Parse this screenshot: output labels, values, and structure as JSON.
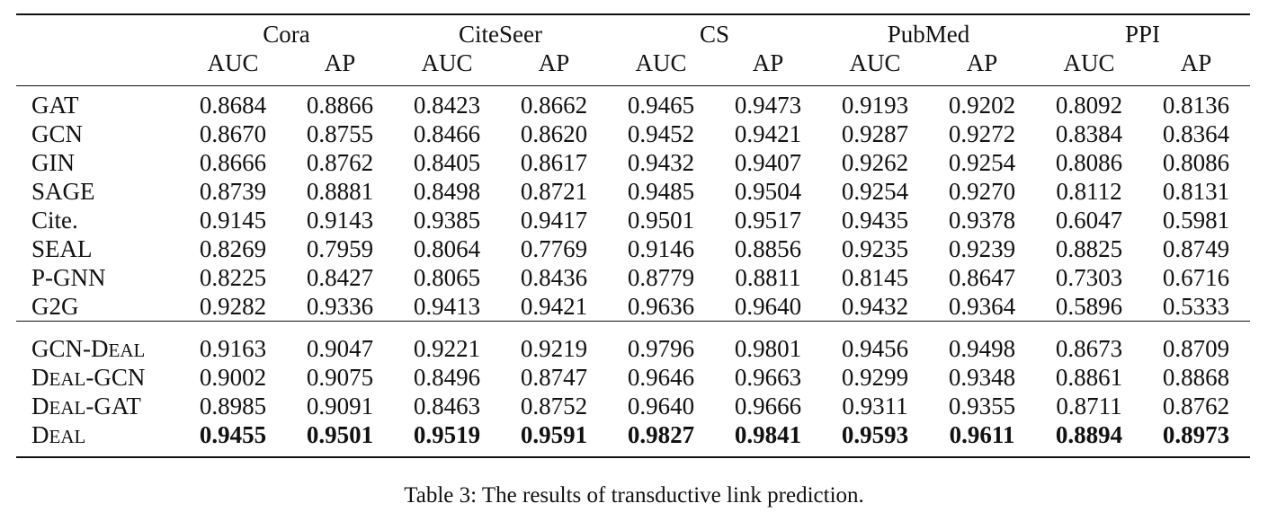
{
  "table": {
    "datasets": [
      "Cora",
      "CiteSeer",
      "CS",
      "PubMed",
      "PPI"
    ],
    "metrics": [
      "AUC",
      "AP"
    ],
    "group1": [
      {
        "method": "GAT",
        "values": [
          "0.8684",
          "0.8866",
          "0.8423",
          "0.8662",
          "0.9465",
          "0.9473",
          "0.9193",
          "0.9202",
          "0.8092",
          "0.8136"
        ]
      },
      {
        "method": "GCN",
        "values": [
          "0.8670",
          "0.8755",
          "0.8466",
          "0.8620",
          "0.9452",
          "0.9421",
          "0.9287",
          "0.9272",
          "0.8384",
          "0.8364"
        ]
      },
      {
        "method": "GIN",
        "values": [
          "0.8666",
          "0.8762",
          "0.8405",
          "0.8617",
          "0.9432",
          "0.9407",
          "0.9262",
          "0.9254",
          "0.8086",
          "0.8086"
        ]
      },
      {
        "method": "SAGE",
        "values": [
          "0.8739",
          "0.8881",
          "0.8498",
          "0.8721",
          "0.9485",
          "0.9504",
          "0.9254",
          "0.9270",
          "0.8112",
          "0.8131"
        ]
      },
      {
        "method": "Cite.",
        "values": [
          "0.9145",
          "0.9143",
          "0.9385",
          "0.9417",
          "0.9501",
          "0.9517",
          "0.9435",
          "0.9378",
          "0.6047",
          "0.5981"
        ]
      },
      {
        "method": "SEAL",
        "values": [
          "0.8269",
          "0.7959",
          "0.8064",
          "0.7769",
          "0.9146",
          "0.8856",
          "0.9235",
          "0.9239",
          "0.8825",
          "0.8749"
        ]
      },
      {
        "method": "P-GNN",
        "values": [
          "0.8225",
          "0.8427",
          "0.8065",
          "0.8436",
          "0.8779",
          "0.8811",
          "0.8145",
          "0.8647",
          "0.7303",
          "0.6716"
        ]
      },
      {
        "method": "G2G",
        "values": [
          "0.9282",
          "0.9336",
          "0.9413",
          "0.9421",
          "0.9636",
          "0.9640",
          "0.9432",
          "0.9364",
          "0.5896",
          "0.5333"
        ]
      }
    ],
    "group2": [
      {
        "method_parts": [
          [
            "GCN-D",
            "big"
          ],
          [
            "EAL",
            "small"
          ]
        ],
        "values": [
          "0.9163",
          "0.9047",
          "0.9221",
          "0.9219",
          "0.9796",
          "0.9801",
          "0.9456",
          "0.9498",
          "0.8673",
          "0.8709"
        ],
        "bold": false
      },
      {
        "method_parts": [
          [
            "D",
            "big"
          ],
          [
            "EAL",
            "small"
          ],
          [
            "-GCN",
            "big"
          ]
        ],
        "values": [
          "0.9002",
          "0.9075",
          "0.8496",
          "0.8747",
          "0.9646",
          "0.9663",
          "0.9299",
          "0.9348",
          "0.8861",
          "0.8868"
        ],
        "bold": false
      },
      {
        "method_parts": [
          [
            "D",
            "big"
          ],
          [
            "EAL",
            "small"
          ],
          [
            "-GAT",
            "big"
          ]
        ],
        "values": [
          "0.8985",
          "0.9091",
          "0.8463",
          "0.8752",
          "0.9640",
          "0.9666",
          "0.9311",
          "0.9355",
          "0.8711",
          "0.8762"
        ],
        "bold": false
      },
      {
        "method_parts": [
          [
            "D",
            "big"
          ],
          [
            "EAL",
            "small"
          ]
        ],
        "values": [
          "0.9455",
          "0.9501",
          "0.9519",
          "0.9591",
          "0.9827",
          "0.9841",
          "0.9593",
          "0.9611",
          "0.8894",
          "0.8973"
        ],
        "bold": true
      }
    ]
  },
  "caption": "Table 3: The results of transductive link prediction."
}
